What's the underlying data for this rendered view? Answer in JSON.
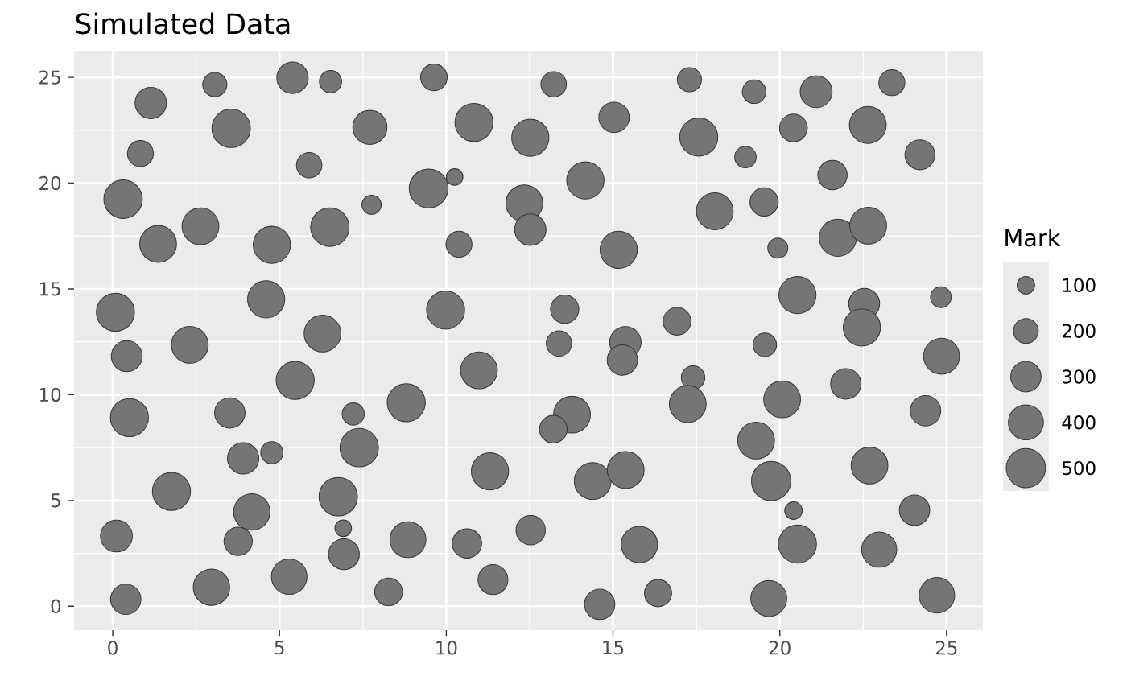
{
  "chart_data": {
    "type": "bubble",
    "title": "Simulated Data",
    "legend_title": "Mark",
    "x": [
      3.06,
      5.39,
      6.53,
      9.63,
      13.22,
      17.29,
      19.23,
      21.09,
      23.36,
      1.14,
      3.55,
      7.71,
      10.83,
      12.52,
      15.03,
      17.57,
      18.97,
      20.41,
      22.64,
      21.58,
      24.2,
      0.83,
      5.89,
      0.31,
      1.36,
      2.63,
      4.77,
      6.51,
      7.76,
      0.08,
      4.6,
      6.29,
      2.31,
      10.25,
      9.47,
      12.34,
      12.52,
      14.17,
      10.38,
      15.17,
      9.98,
      13.55,
      16.92,
      13.38,
      15.37,
      15.28,
      18.05,
      19.53,
      19.94,
      21.74,
      22.65,
      20.53,
      22.53,
      22.46,
      24.83,
      19.55,
      24.85,
      21.98,
      20.07,
      24.37,
      19.29,
      22.69,
      19.74,
      20.41,
      24.04,
      20.53,
      22.98,
      19.67,
      24.71,
      17.4,
      17.24,
      10.98,
      8.8,
      13.77,
      13.21,
      11.31,
      14.39,
      15.38,
      8.85,
      10.62,
      12.53,
      15.79,
      11.4,
      8.27,
      14.6,
      16.35,
      0.42,
      5.47,
      0.5,
      3.51,
      7.21,
      7.39,
      4.77,
      3.91,
      1.76,
      4.17,
      6.76,
      6.91,
      0.11,
      3.76,
      6.93,
      2.96,
      5.29,
      0.39
    ],
    "values": [
      24.66,
      24.98,
      24.8,
      25.0,
      24.67,
      24.89,
      24.32,
      24.32,
      24.75,
      23.79,
      22.59,
      22.64,
      22.87,
      22.15,
      23.11,
      22.18,
      21.23,
      22.61,
      22.75,
      20.38,
      21.34,
      21.4,
      20.85,
      19.24,
      17.13,
      17.96,
      17.09,
      17.92,
      18.98,
      13.9,
      14.51,
      12.89,
      12.36,
      20.29,
      19.75,
      19.05,
      17.8,
      20.13,
      17.11,
      16.85,
      14.0,
      14.04,
      13.47,
      12.42,
      12.48,
      11.64,
      18.67,
      19.11,
      16.93,
      17.42,
      17.99,
      14.71,
      14.3,
      13.18,
      14.61,
      12.36,
      11.82,
      10.51,
      9.78,
      9.24,
      7.83,
      6.65,
      5.92,
      4.52,
      4.54,
      2.94,
      2.68,
      0.37,
      0.52,
      10.81,
      9.56,
      11.15,
      9.62,
      9.06,
      8.37,
      6.38,
      5.92,
      6.44,
      3.15,
      2.97,
      3.6,
      2.92,
      1.26,
      0.68,
      0.09,
      0.62,
      11.82,
      10.68,
      8.92,
      9.14,
      9.09,
      7.5,
      7.26,
      6.99,
      5.43,
      4.46,
      5.18,
      3.69,
      3.32,
      3.07,
      2.46,
      0.9,
      1.4,
      0.33
    ],
    "sizes": [
      190,
      320,
      160,
      230,
      210,
      190,
      180,
      330,
      220,
      320,
      480,
      380,
      470,
      450,
      300,
      470,
      150,
      250,
      440,
      280,
      290,
      220,
      210,
      480,
      440,
      440,
      450,
      480,
      120,
      470,
      450,
      440,
      440,
      90,
      490,
      440,
      320,
      450,
      220,
      450,
      470,
      260,
      250,
      210,
      320,
      300,
      440,
      260,
      130,
      450,
      440,
      450,
      310,
      450,
      140,
      180,
      420,
      300,
      440,
      300,
      440,
      440,
      500,
      100,
      300,
      470,
      400,
      420,
      410,
      180,
      440,
      440,
      470,
      440,
      250,
      450,
      440,
      440,
      420,
      280,
      280,
      430,
      290,
      250,
      300,
      240,
      310,
      470,
      470,
      300,
      160,
      480,
      160,
      320,
      470,
      430,
      480,
      90,
      330,
      260,
      310,
      430,
      410,
      300
    ],
    "size_legend": [
      100,
      200,
      300,
      400,
      500
    ],
    "color": "#757575",
    "marker": "circle",
    "xlim": [
      -1.16,
      26.09
    ],
    "ylim": [
      -1.13,
      26.26
    ],
    "xticks": [
      0,
      5,
      10,
      15,
      20,
      25
    ],
    "yticks": [
      0,
      5,
      10,
      15,
      20,
      25
    ],
    "grid": true
  }
}
